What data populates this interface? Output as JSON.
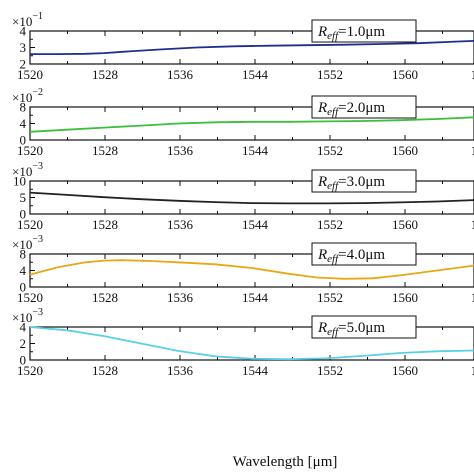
{
  "chart_data": {
    "type": "line",
    "xlabel": "Wavelength [μm]",
    "x_ticks": [
      "1520",
      "1528",
      "1536",
      "1544",
      "1552",
      "1560",
      "1"
    ],
    "xlim": [
      1520,
      1568
    ],
    "panels": [
      {
        "series_label_main": "R",
        "series_label_sub": "eff",
        "series_label_value": "=1.0μm",
        "scale_base": "×10",
        "scale_exp": "−1",
        "yticks": [
          "4",
          "3",
          "2"
        ],
        "ylim": [
          2,
          4
        ],
        "color": "#1f2f8f",
        "x": [
          1520,
          1523,
          1526,
          1528,
          1530,
          1534,
          1538,
          1542,
          1546,
          1550,
          1554,
          1558,
          1562,
          1566,
          1568
        ],
        "y": [
          2.6,
          2.6,
          2.62,
          2.66,
          2.74,
          2.88,
          3.0,
          3.07,
          3.11,
          3.14,
          3.17,
          3.21,
          3.26,
          3.36,
          3.4
        ]
      },
      {
        "series_label_main": "R",
        "series_label_sub": "eff",
        "series_label_value": "=2.0μm",
        "scale_base": "×10",
        "scale_exp": "−2",
        "yticks": [
          "8",
          "4",
          "0"
        ],
        "ylim": [
          0,
          8
        ],
        "color": "#3cbf3c",
        "x": [
          1520,
          1524,
          1528,
          1532,
          1536,
          1540,
          1544,
          1548,
          1552,
          1556,
          1560,
          1564,
          1568
        ],
        "y": [
          2.0,
          2.5,
          3.0,
          3.5,
          4.0,
          4.3,
          4.4,
          4.4,
          4.5,
          4.6,
          4.8,
          5.1,
          5.5
        ]
      },
      {
        "series_label_main": "R",
        "series_label_sub": "eff",
        "series_label_value": "=3.0μm",
        "scale_base": "×10",
        "scale_exp": "−3",
        "yticks": [
          "10",
          "5",
          "0"
        ],
        "ylim": [
          0,
          10
        ],
        "color": "#222222",
        "x": [
          1520,
          1524,
          1528,
          1532,
          1536,
          1540,
          1544,
          1548,
          1552,
          1556,
          1560,
          1564,
          1568
        ],
        "y": [
          6.5,
          5.8,
          5.1,
          4.5,
          4.0,
          3.6,
          3.3,
          3.2,
          3.2,
          3.3,
          3.5,
          3.8,
          4.2
        ]
      },
      {
        "series_label_main": "R",
        "series_label_sub": "eff",
        "series_label_value": "=4.0μm",
        "scale_base": "×10",
        "scale_exp": "−3",
        "yticks": [
          "8",
          "4",
          "0"
        ],
        "ylim": [
          0,
          8
        ],
        "color": "#e6a817",
        "x": [
          1520,
          1523,
          1526,
          1528,
          1530,
          1533,
          1536,
          1540,
          1544,
          1548,
          1551,
          1554,
          1557,
          1560,
          1564,
          1568
        ],
        "y": [
          3.0,
          4.8,
          6.0,
          6.4,
          6.5,
          6.3,
          6.0,
          5.5,
          4.6,
          3.2,
          2.3,
          2.0,
          2.1,
          2.8,
          4.0,
          5.2
        ]
      },
      {
        "series_label_main": "R",
        "series_label_sub": "eff",
        "series_label_value": "=5.0μm",
        "scale_base": "×10",
        "scale_exp": "−3",
        "yticks": [
          "4",
          "2",
          "0"
        ],
        "ylim": [
          0,
          4
        ],
        "color": "#5ad0e6",
        "x": [
          1520,
          1524,
          1528,
          1532,
          1536,
          1540,
          1544,
          1548,
          1552,
          1556,
          1560,
          1564,
          1568
        ],
        "y": [
          4.0,
          3.6,
          2.9,
          2.0,
          1.1,
          0.45,
          0.15,
          0.1,
          0.2,
          0.5,
          0.85,
          1.05,
          1.15
        ]
      }
    ]
  }
}
